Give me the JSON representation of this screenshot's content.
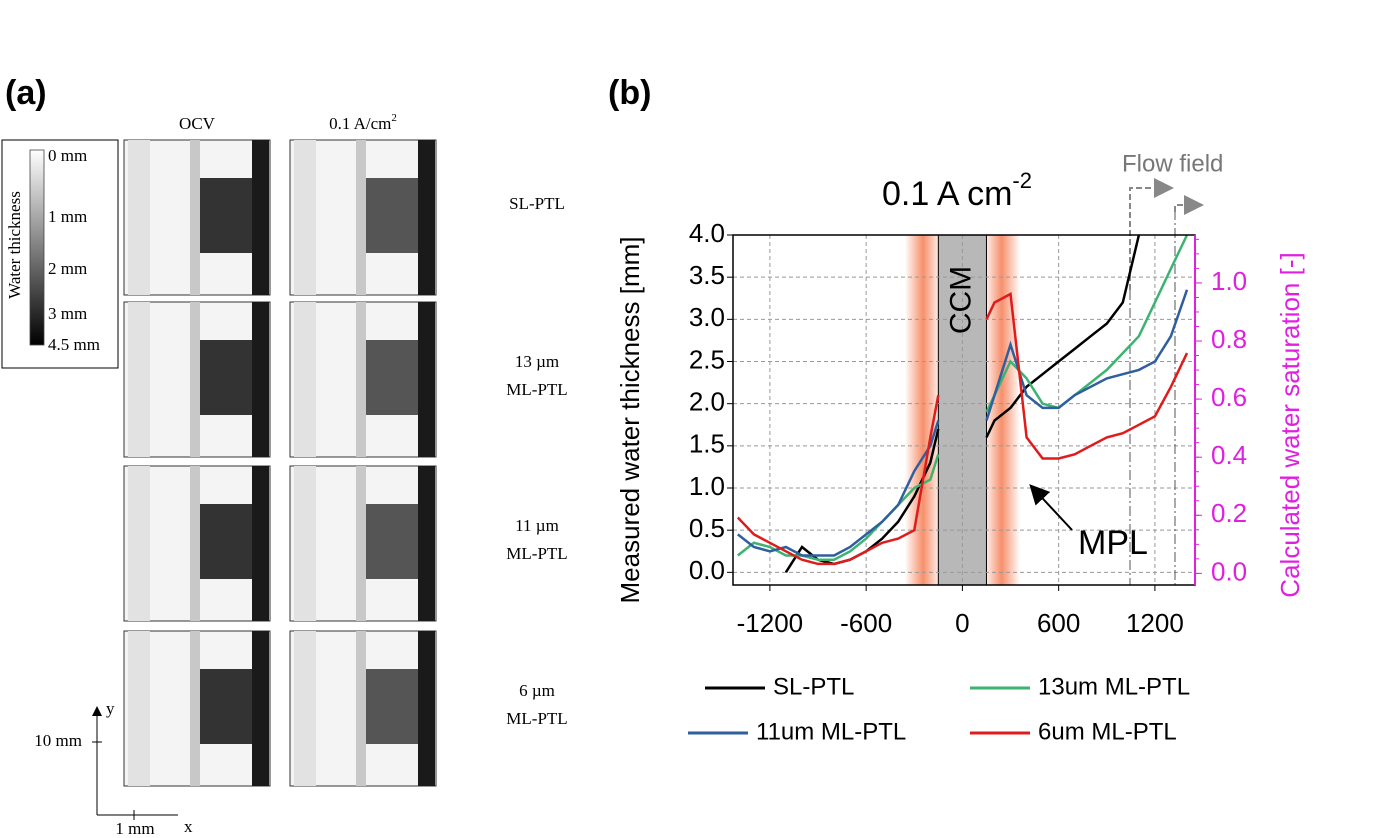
{
  "panel_a": {
    "label": "(a)",
    "colorbar_title": "Water thickness",
    "colorbar_labels": [
      "0 mm",
      "1 mm",
      "2 mm",
      "3 mm",
      "4.5 mm"
    ],
    "columns": [
      {
        "text": "OCV"
      },
      {
        "text": "0.1 A/cm",
        "sup": "2"
      }
    ],
    "rows": [
      [
        "SL-PTL"
      ],
      [
        "13 µm",
        "ML-PTL"
      ],
      [
        "11 µm",
        "ML-PTL"
      ],
      [
        "6 µm",
        "ML-PTL"
      ]
    ],
    "axis_y": "y",
    "axis_x": "x",
    "scale_y": "10 mm",
    "scale_x": "1 mm"
  },
  "chart_data": {
    "type": "line",
    "label": "(b)",
    "title": "0.1 A cm",
    "title_superscript": "-2",
    "ylabel": "Measured water thickness [mm]",
    "y2label": "Calculated water saturation [-]",
    "annotations": [
      "CCM",
      "MPL",
      "Flow field"
    ],
    "x": [
      -1400,
      -1300,
      -1200,
      -1100,
      -1000,
      -900,
      -800,
      -700,
      -600,
      -500,
      -400,
      -300,
      -200,
      -150,
      0,
      150,
      200,
      300,
      400,
      500,
      600,
      700,
      800,
      900,
      1000,
      1100,
      1200,
      1300,
      1400
    ],
    "xlim": [
      -1430,
      1450
    ],
    "xticks": [
      -1200,
      -600,
      0,
      600,
      1200
    ],
    "ylim": [
      -0.15,
      4.0
    ],
    "yticks": [
      {
        "value": 0,
        "label": "0.0"
      },
      0.5,
      {
        "value": 1,
        "label": "1.0"
      },
      1.5,
      {
        "value": 2,
        "label": "2.0"
      },
      2.5,
      {
        "value": 3,
        "label": "3.0"
      },
      3.5,
      {
        "value": 4,
        "label": "4.0"
      }
    ],
    "y2lim": [
      -0.04,
      1.165
    ],
    "y2ticks": [
      {
        "value": 0,
        "label": "0.0"
      },
      0.2,
      0.4,
      0.6,
      0.8,
      {
        "value": 1,
        "label": "1.0"
      }
    ],
    "y2color": "#e020e0",
    "grid": true,
    "series": [
      {
        "name": "SL-PTL",
        "color": "#000000",
        "values": [
          null,
          null,
          null,
          0.0,
          0.3,
          0.15,
          0.1,
          0.15,
          0.25,
          0.4,
          0.6,
          0.9,
          1.3,
          1.7,
          null,
          1.6,
          1.8,
          1.95,
          2.2,
          2.35,
          2.5,
          2.65,
          2.8,
          2.95,
          3.2,
          4.0,
          null,
          null,
          null
        ]
      },
      {
        "name": "13um ML-PTL",
        "color": "#3cb371",
        "values": [
          0.2,
          0.35,
          0.3,
          0.2,
          0.2,
          0.15,
          0.15,
          0.25,
          0.4,
          0.6,
          0.8,
          1.0,
          1.1,
          1.4,
          null,
          1.9,
          2.1,
          2.5,
          2.3,
          2.0,
          1.95,
          2.1,
          2.25,
          2.4,
          2.6,
          2.8,
          3.2,
          3.6,
          4.0
        ]
      },
      {
        "name": "11um ML-PTL",
        "color": "#2f5f9e",
        "values": [
          0.45,
          0.3,
          0.25,
          0.3,
          0.2,
          0.2,
          0.2,
          0.3,
          0.45,
          0.6,
          0.8,
          1.2,
          1.5,
          1.8,
          null,
          1.8,
          2.1,
          2.7,
          2.1,
          1.95,
          1.95,
          2.1,
          2.2,
          2.3,
          2.35,
          2.4,
          2.5,
          2.8,
          3.35
        ]
      },
      {
        "name": "6um ML-PTL",
        "color": "#e01b1b",
        "values": [
          0.65,
          0.45,
          0.35,
          0.25,
          0.15,
          0.1,
          0.1,
          0.15,
          0.25,
          0.35,
          0.4,
          0.5,
          1.6,
          2.1,
          null,
          3.0,
          3.2,
          3.3,
          1.6,
          1.35,
          1.35,
          1.4,
          1.5,
          1.6,
          1.65,
          1.75,
          1.85,
          2.2,
          2.6
        ]
      }
    ]
  }
}
